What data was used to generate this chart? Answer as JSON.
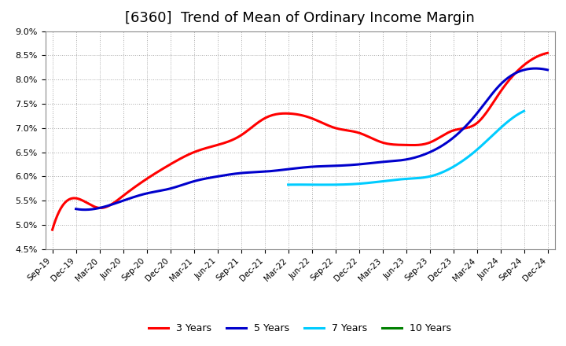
{
  "title": "[6360]  Trend of Mean of Ordinary Income Margin",
  "title_fontsize": 13,
  "ylim": [
    0.045,
    0.09
  ],
  "yticks": [
    0.045,
    0.05,
    0.055,
    0.06,
    0.065,
    0.07,
    0.075,
    0.08,
    0.085,
    0.09
  ],
  "ytick_labels": [
    "4.5%",
    "5.0%",
    "5.5%",
    "6.0%",
    "6.5%",
    "7.0%",
    "7.5%",
    "8.0%",
    "8.5%",
    "9.0%"
  ],
  "x_labels": [
    "Sep-19",
    "Dec-19",
    "Mar-20",
    "Jun-20",
    "Sep-20",
    "Dec-20",
    "Mar-21",
    "Jun-21",
    "Sep-21",
    "Dec-21",
    "Mar-22",
    "Jun-22",
    "Sep-22",
    "Dec-22",
    "Mar-23",
    "Jun-23",
    "Sep-23",
    "Dec-23",
    "Mar-24",
    "Jun-24",
    "Sep-24",
    "Dec-24"
  ],
  "series": {
    "3 Years": {
      "color": "#ff0000",
      "raw_x": [
        0,
        1,
        2,
        3,
        4,
        5,
        6,
        7,
        8,
        9,
        10,
        11,
        12,
        13,
        14,
        15,
        16,
        17,
        18,
        19,
        20,
        21
      ],
      "raw_y": [
        0.049,
        0.0555,
        0.0535,
        0.056,
        0.0595,
        0.0625,
        0.065,
        0.0665,
        0.0685,
        0.072,
        0.073,
        0.072,
        0.07,
        0.069,
        0.067,
        0.0665,
        0.067,
        0.0695,
        0.071,
        0.0775,
        0.083,
        0.0855
      ]
    },
    "5 Years": {
      "color": "#0000cc",
      "raw_x": [
        1,
        2,
        3,
        4,
        5,
        6,
        7,
        8,
        9,
        10,
        11,
        12,
        13,
        14,
        15,
        16,
        17,
        18,
        19,
        20,
        21
      ],
      "raw_y": [
        0.0533,
        0.0535,
        0.055,
        0.0565,
        0.0575,
        0.059,
        0.06,
        0.0607,
        0.061,
        0.0615,
        0.062,
        0.0622,
        0.0625,
        0.063,
        0.0635,
        0.065,
        0.068,
        0.073,
        0.079,
        0.082,
        0.082
      ]
    },
    "7 Years": {
      "color": "#00ccff",
      "raw_x": [
        10,
        11,
        12,
        13,
        14,
        15,
        16,
        17,
        18,
        19,
        20
      ],
      "raw_y": [
        0.0583,
        0.0583,
        0.0583,
        0.0585,
        0.059,
        0.0595,
        0.06,
        0.062,
        0.0655,
        0.07,
        0.0735
      ]
    },
    "10 Years": {
      "color": "#008000",
      "raw_x": [],
      "raw_y": []
    }
  },
  "legend_labels": [
    "3 Years",
    "5 Years",
    "7 Years",
    "10 Years"
  ],
  "legend_colors": [
    "#ff0000",
    "#0000cc",
    "#00ccff",
    "#008000"
  ],
  "background_color": "#ffffff",
  "grid_color": "#aaaaaa"
}
